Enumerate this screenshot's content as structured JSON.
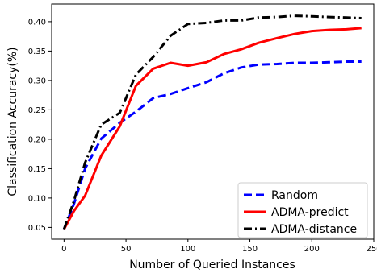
{
  "chart_data": {
    "type": "line",
    "title": "",
    "xlabel": "Number of Queried Instances",
    "ylabel": "Classification Accuracy(%)",
    "xlim": [
      -10,
      250
    ],
    "ylim": [
      0.03,
      0.43
    ],
    "xticks": [
      0,
      50,
      100,
      150,
      200,
      250
    ],
    "yticks": [
      0.05,
      0.1,
      0.15,
      0.2,
      0.25,
      0.3,
      0.35,
      0.4
    ],
    "grid": false,
    "legend_position": "bottom-right",
    "x": [
      0,
      8,
      17,
      30,
      45,
      58,
      72,
      86,
      100,
      115,
      129,
      143,
      157,
      172,
      186,
      200,
      214,
      228,
      240
    ],
    "series": [
      {
        "name": "Random",
        "color": "#0000ff",
        "dash": "dashed",
        "values": [
          0.047,
          0.09,
          0.15,
          0.201,
          0.228,
          0.247,
          0.27,
          0.277,
          0.287,
          0.297,
          0.312,
          0.322,
          0.327,
          0.328,
          0.33,
          0.33,
          0.331,
          0.332,
          0.332
        ]
      },
      {
        "name": "ADMA-predict",
        "color": "#ff0000",
        "dash": "solid",
        "values": [
          0.047,
          0.078,
          0.104,
          0.172,
          0.222,
          0.291,
          0.32,
          0.33,
          0.325,
          0.331,
          0.345,
          0.353,
          0.364,
          0.372,
          0.379,
          0.384,
          0.386,
          0.387,
          0.389
        ]
      },
      {
        "name": "ADMA-distance",
        "color": "#000000",
        "dash": "dashdot",
        "values": [
          0.047,
          0.095,
          0.16,
          0.225,
          0.245,
          0.31,
          0.34,
          0.376,
          0.396,
          0.398,
          0.402,
          0.402,
          0.407,
          0.408,
          0.41,
          0.409,
          0.408,
          0.407,
          0.406
        ]
      }
    ]
  }
}
